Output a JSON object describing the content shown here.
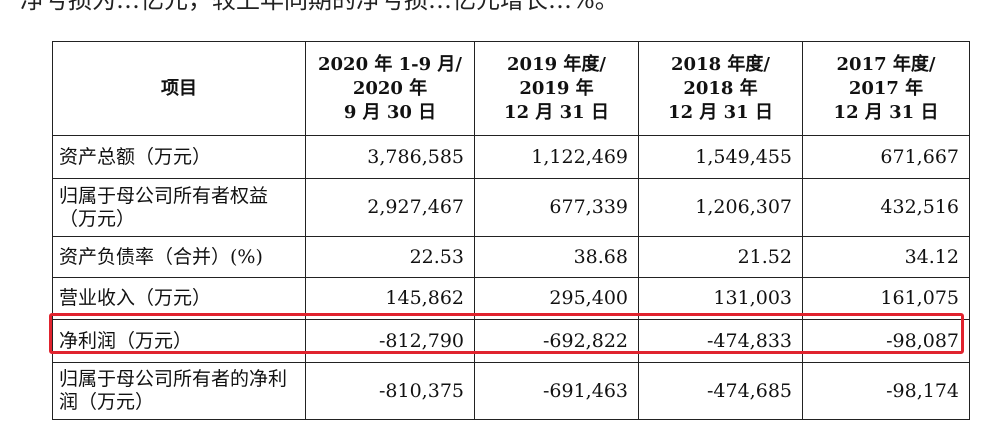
{
  "top_text": "净亏损为…亿元，较上年同期的净亏损…亿元增长…%。",
  "table": {
    "headers": [
      "项目",
      "2020 年 1-9 月/\n2020 年\n9 月 30 日",
      "2019 年度/\n2019 年\n12 月 31 日",
      "2018 年度/\n2018 年\n12 月 31 日",
      "2017 年度/\n2017 年\n12 月 31 日"
    ],
    "rows": [
      {
        "label": "资产总额（万元）",
        "values": [
          "3,786,585",
          "1,122,469",
          "1,549,455",
          "671,667"
        ]
      },
      {
        "label": "归属于母公司所有者权益（万元）",
        "values": [
          "2,927,467",
          "677,339",
          "1,206,307",
          "432,516"
        ]
      },
      {
        "label": "资产负债率（合并）(%)",
        "values": [
          "22.53",
          "38.68",
          "21.52",
          "34.12"
        ]
      },
      {
        "label": "营业收入（万元）",
        "values": [
          "145,862",
          "295,400",
          "131,003",
          "161,075"
        ]
      },
      {
        "label": "净利润（万元）",
        "values": [
          "-812,790",
          "-692,822",
          "-474,833",
          "-98,087"
        ]
      },
      {
        "label": "归属于母公司所有者的净利润（万元）",
        "values": [
          "-810,375",
          "-691,463",
          "-474,685",
          "-98,174"
        ]
      }
    ]
  },
  "highlight_color": "#e0232e"
}
